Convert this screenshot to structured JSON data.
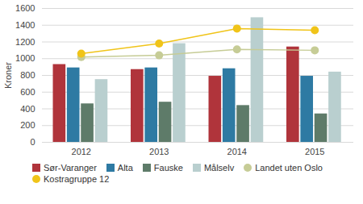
{
  "chart_data": {
    "type": "bar",
    "categories": [
      "2012",
      "2013",
      "2014",
      "2015"
    ],
    "ylabel": "Kroner",
    "ylim": [
      0,
      1600
    ],
    "yticks": [
      0,
      200,
      400,
      600,
      800,
      1000,
      1200,
      1400,
      1600
    ],
    "grid": true,
    "legend": "bottom",
    "series": [
      {
        "name": "Sør-Varanger",
        "color": "#b0343b",
        "type": "bar",
        "values": [
          930,
          870,
          790,
          1140
        ]
      },
      {
        "name": "Alta",
        "color": "#2e7aa3",
        "type": "bar",
        "values": [
          890,
          890,
          880,
          790
        ]
      },
      {
        "name": "Fauske",
        "color": "#5e7b69",
        "type": "bar",
        "values": [
          460,
          480,
          440,
          340
        ]
      },
      {
        "name": "Målselv",
        "color": "#b9cfcf",
        "type": "bar",
        "values": [
          750,
          1180,
          1490,
          840
        ]
      },
      {
        "name": "Landet uten Oslo",
        "color": "#c6cc96",
        "type": "line",
        "marker": "circle",
        "values": [
          1020,
          1040,
          1110,
          1100
        ]
      },
      {
        "name": "Kostragruppe 12",
        "color": "#f0c419",
        "type": "line",
        "marker": "circle",
        "values": [
          1060,
          1180,
          1360,
          1340
        ]
      }
    ]
  }
}
